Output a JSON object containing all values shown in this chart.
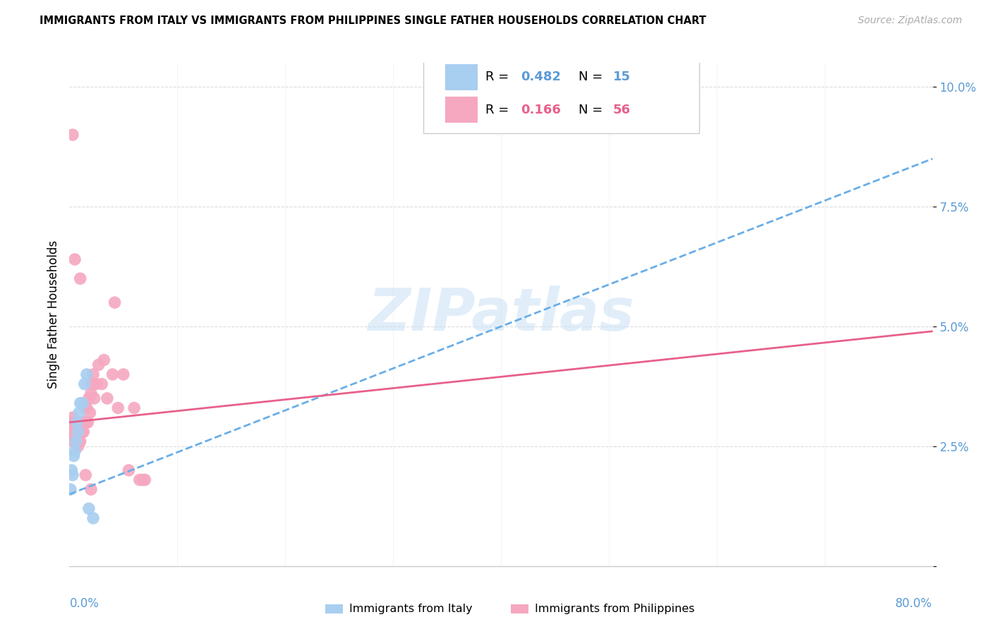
{
  "title": "IMMIGRANTS FROM ITALY VS IMMIGRANTS FROM PHILIPPINES SINGLE FATHER HOUSEHOLDS CORRELATION CHART",
  "source": "Source: ZipAtlas.com",
  "ylabel": "Single Father Households",
  "ytick_vals": [
    0.0,
    0.025,
    0.05,
    0.075,
    0.1
  ],
  "ytick_labels": [
    "",
    "2.5%",
    "5.0%",
    "7.5%",
    "10.0%"
  ],
  "xlim": [
    0.0,
    0.8
  ],
  "ylim": [
    0.0,
    0.105
  ],
  "watermark": "ZIPatlas",
  "legend_italy_R": "0.482",
  "legend_italy_N": "15",
  "legend_phil_R": "0.166",
  "legend_phil_N": "56",
  "italy_color": "#a8cef0",
  "phil_color": "#f5a8c0",
  "italy_line_color": "#6aaee8",
  "phil_line_color": "#e8608a",
  "italy_line_x0": 0.0,
  "italy_line_y0": 0.015,
  "italy_line_x1": 0.8,
  "italy_line_y1": 0.085,
  "phil_line_x0": 0.0,
  "phil_line_y0": 0.03,
  "phil_line_x1": 0.8,
  "phil_line_y1": 0.049,
  "italy_x": [
    0.001,
    0.002,
    0.003,
    0.004,
    0.005,
    0.006,
    0.007,
    0.008,
    0.009,
    0.01,
    0.012,
    0.014,
    0.016,
    0.018,
    0.022
  ],
  "italy_y": [
    0.016,
    0.02,
    0.019,
    0.023,
    0.024,
    0.026,
    0.03,
    0.028,
    0.032,
    0.034,
    0.034,
    0.038,
    0.04,
    0.012,
    0.01
  ],
  "phil_x": [
    0.001,
    0.002,
    0.002,
    0.003,
    0.003,
    0.003,
    0.004,
    0.004,
    0.005,
    0.005,
    0.005,
    0.006,
    0.006,
    0.007,
    0.007,
    0.008,
    0.008,
    0.009,
    0.009,
    0.01,
    0.01,
    0.011,
    0.011,
    0.012,
    0.012,
    0.013,
    0.014,
    0.015,
    0.015,
    0.016,
    0.017,
    0.018,
    0.019,
    0.02,
    0.021,
    0.022,
    0.023,
    0.025,
    0.027,
    0.03,
    0.032,
    0.035,
    0.04,
    0.042,
    0.045,
    0.05,
    0.055,
    0.06,
    0.065,
    0.07,
    0.003,
    0.005,
    0.01,
    0.015,
    0.02,
    0.068
  ],
  "phil_y": [
    0.028,
    0.03,
    0.027,
    0.031,
    0.028,
    0.026,
    0.029,
    0.027,
    0.026,
    0.028,
    0.026,
    0.028,
    0.026,
    0.03,
    0.028,
    0.027,
    0.025,
    0.028,
    0.026,
    0.028,
    0.026,
    0.03,
    0.028,
    0.03,
    0.028,
    0.028,
    0.03,
    0.033,
    0.03,
    0.033,
    0.03,
    0.035,
    0.032,
    0.036,
    0.038,
    0.04,
    0.035,
    0.038,
    0.042,
    0.038,
    0.043,
    0.035,
    0.04,
    0.055,
    0.033,
    0.04,
    0.02,
    0.033,
    0.018,
    0.018,
    0.09,
    0.064,
    0.06,
    0.019,
    0.016,
    0.018
  ]
}
